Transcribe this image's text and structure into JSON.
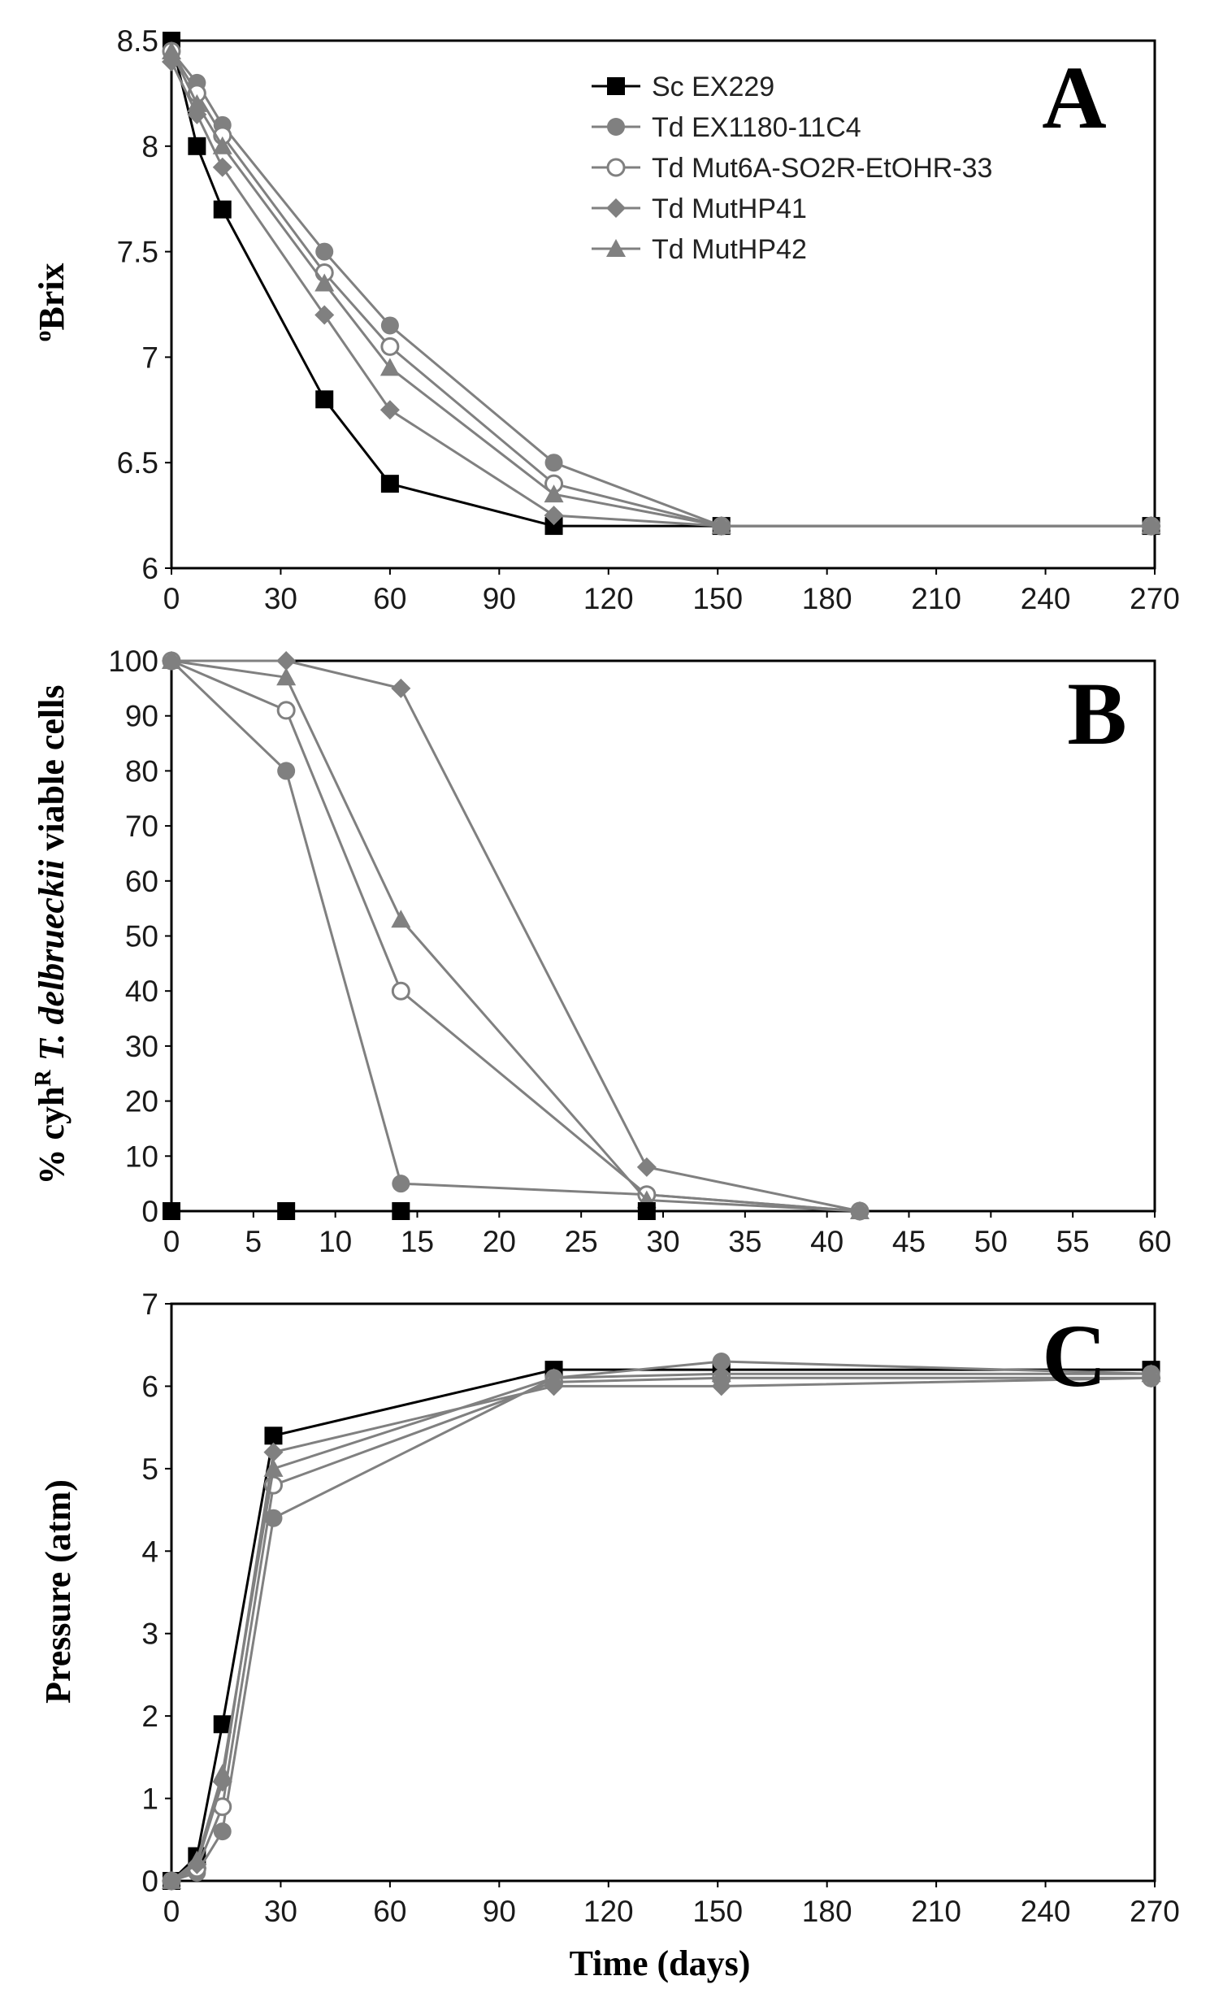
{
  "colors": {
    "black": "#000000",
    "gray": "#808080",
    "white": "#ffffff"
  },
  "x_axis_title": "Time (days)",
  "chart_data": [
    {
      "panel": "A",
      "type": "line",
      "ylabel": "oBrix",
      "ylabel_parts": {
        "sup": "o",
        "main": "Brix"
      },
      "xlim": [
        0,
        270
      ],
      "ylim": [
        6,
        8.5
      ],
      "xticks": [
        0,
        30,
        60,
        90,
        120,
        150,
        180,
        210,
        240,
        270
      ],
      "yticks": [
        6,
        6.5,
        7,
        7.5,
        8,
        8.5
      ],
      "ytick_labels": [
        "6",
        "6.5",
        "7",
        "7.5",
        "8",
        "8.5"
      ],
      "legend": "top-right",
      "series": [
        {
          "name": "Sc EX229",
          "marker": "square",
          "color": "#000000",
          "x": [
            0,
            7,
            14,
            42,
            60,
            105,
            151,
            269
          ],
          "y": [
            8.5,
            8.0,
            7.7,
            6.8,
            6.4,
            6.2,
            6.2,
            6.2
          ]
        },
        {
          "name": "Td EX1180-11C4",
          "marker": "circle",
          "color": "#808080",
          "x": [
            0,
            7,
            14,
            42,
            60,
            105,
            151,
            269
          ],
          "y": [
            8.45,
            8.3,
            8.1,
            7.5,
            7.15,
            6.5,
            6.2,
            6.2
          ]
        },
        {
          "name": "Td Mut6A-SO2R-EtOHR-33",
          "marker": "open-circle",
          "color": "#808080",
          "x": [
            0,
            7,
            14,
            42,
            60,
            105,
            151,
            269
          ],
          "y": [
            8.45,
            8.25,
            8.05,
            7.4,
            7.05,
            6.4,
            6.2,
            6.2
          ]
        },
        {
          "name": "Td MutHP41",
          "marker": "diamond",
          "color": "#808080",
          "x": [
            0,
            7,
            14,
            42,
            60,
            105,
            151,
            269
          ],
          "y": [
            8.4,
            8.15,
            7.9,
            7.2,
            6.75,
            6.25,
            6.2,
            6.2
          ]
        },
        {
          "name": "Td MutHP42",
          "marker": "triangle",
          "color": "#808080",
          "x": [
            0,
            7,
            14,
            42,
            60,
            105,
            151,
            269
          ],
          "y": [
            8.45,
            8.2,
            8.0,
            7.35,
            6.95,
            6.35,
            6.2,
            6.2
          ]
        }
      ]
    },
    {
      "panel": "B",
      "type": "line",
      "ylabel": "% cyhR T. delbrueckii viable cells",
      "ylabel_parts": {
        "a": "% cyh",
        "sup": "R",
        "b": " ",
        "italic": "T. delbrueckii",
        "c": " viable cells"
      },
      "xlim": [
        0,
        60
      ],
      "ylim": [
        0,
        100
      ],
      "xticks": [
        0,
        5,
        10,
        15,
        20,
        25,
        30,
        35,
        40,
        45,
        50,
        55,
        60
      ],
      "yticks": [
        0,
        10,
        20,
        30,
        40,
        50,
        60,
        70,
        80,
        90,
        100
      ],
      "series": [
        {
          "name": "Sc EX229",
          "marker": "square",
          "color": "#000000",
          "x": [
            0,
            7,
            14,
            29
          ],
          "y": [
            0,
            0,
            0,
            0
          ],
          "line": false
        },
        {
          "name": "Td EX1180-11C4",
          "marker": "circle",
          "color": "#808080",
          "x": [
            0,
            7,
            14,
            29,
            42
          ],
          "y": [
            100,
            80,
            5,
            3,
            0
          ]
        },
        {
          "name": "Td Mut6A-SO2R-EtOHR-33",
          "marker": "open-circle",
          "color": "#808080",
          "x": [
            0,
            7,
            14,
            29,
            42
          ],
          "y": [
            100,
            91,
            40,
            3,
            0
          ]
        },
        {
          "name": "Td MutHP41",
          "marker": "diamond",
          "color": "#808080",
          "x": [
            0,
            7,
            14,
            29,
            42
          ],
          "y": [
            100,
            100,
            95,
            8,
            0
          ]
        },
        {
          "name": "Td MutHP42",
          "marker": "triangle",
          "color": "#808080",
          "x": [
            0,
            7,
            14,
            29,
            42
          ],
          "y": [
            100,
            97,
            53,
            2,
            0
          ]
        }
      ]
    },
    {
      "panel": "C",
      "type": "line",
      "ylabel": "Pressure (atm)",
      "xlabel": "Time (days)",
      "xlim": [
        0,
        270
      ],
      "ylim": [
        0,
        7
      ],
      "xticks": [
        0,
        30,
        60,
        90,
        120,
        150,
        180,
        210,
        240,
        270
      ],
      "yticks": [
        0,
        1,
        2,
        3,
        4,
        5,
        6,
        7
      ],
      "series": [
        {
          "name": "Sc EX229",
          "marker": "square",
          "color": "#000000",
          "x": [
            0,
            7,
            14,
            28,
            105,
            151,
            269
          ],
          "y": [
            0,
            0.3,
            1.9,
            5.4,
            6.2,
            6.2,
            6.2
          ]
        },
        {
          "name": "Td EX1180-11C4",
          "marker": "circle",
          "color": "#808080",
          "x": [
            0,
            7,
            14,
            28,
            105,
            151,
            269
          ],
          "y": [
            0,
            0.1,
            0.6,
            4.4,
            6.1,
            6.3,
            6.15
          ]
        },
        {
          "name": "Td Mut6A-SO2R-EtOHR-33",
          "marker": "open-circle",
          "color": "#808080",
          "x": [
            0,
            7,
            14,
            28,
            105,
            151,
            269
          ],
          "y": [
            0,
            0.15,
            0.9,
            4.8,
            6.05,
            6.1,
            6.1
          ]
        },
        {
          "name": "Td MutHP41",
          "marker": "diamond",
          "color": "#808080",
          "x": [
            0,
            7,
            14,
            28,
            105,
            151,
            269
          ],
          "y": [
            0,
            0.2,
            1.2,
            5.2,
            6.0,
            6.0,
            6.1
          ]
        },
        {
          "name": "Td MutHP42",
          "marker": "triangle",
          "color": "#808080",
          "x": [
            0,
            7,
            14,
            28,
            105,
            151,
            269
          ],
          "y": [
            0,
            0.25,
            1.3,
            5.0,
            6.1,
            6.15,
            6.15
          ]
        }
      ]
    }
  ]
}
